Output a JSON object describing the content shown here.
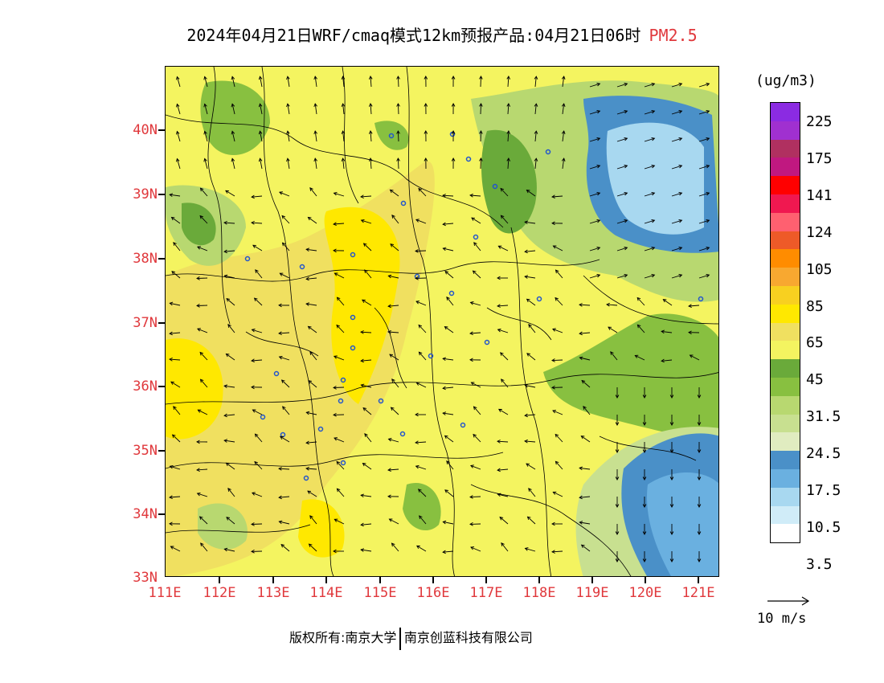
{
  "title": {
    "main": "2024年04月21日WRF/cmaq模式12km预报产品:04月21日06时",
    "variable": "PM2.5"
  },
  "axes": {
    "lat_labels": [
      "40N",
      "39N",
      "38N",
      "37N",
      "36N",
      "35N",
      "34N",
      "33N"
    ],
    "lon_labels": [
      "111E",
      "112E",
      "113E",
      "114E",
      "115E",
      "116E",
      "117E",
      "118E",
      "119E",
      "120E",
      "121E"
    ]
  },
  "colorbar": {
    "unit": "(ug/m3)",
    "labels": [
      "225",
      "175",
      "141",
      "124",
      "105",
      "85",
      "65",
      "45",
      "31.5",
      "24.5",
      "17.5",
      "10.5",
      "3.5"
    ],
    "colors": [
      "#8b2be2",
      "#a030d0",
      "#b03060",
      "#c01880",
      "#ff0000",
      "#f01850",
      "#ff6070",
      "#ee5a28",
      "#ff8c00",
      "#f8a830",
      "#f8d020",
      "#ffe800",
      "#f0e060",
      "#f4f460",
      "#6aaa3a",
      "#88c040",
      "#b8d870",
      "#c8e090",
      "#e0ecc0",
      "#4a90c8",
      "#6ab0e0",
      "#a8d8f0",
      "#d0ecf8",
      "#ffffff"
    ]
  },
  "wind_scale": {
    "label": "10 m/s"
  },
  "footer": {
    "left": "版权所有:南京大学",
    "right": "南京创蓝科技有限公司"
  },
  "colors": {
    "label_red": "#e0383c"
  }
}
